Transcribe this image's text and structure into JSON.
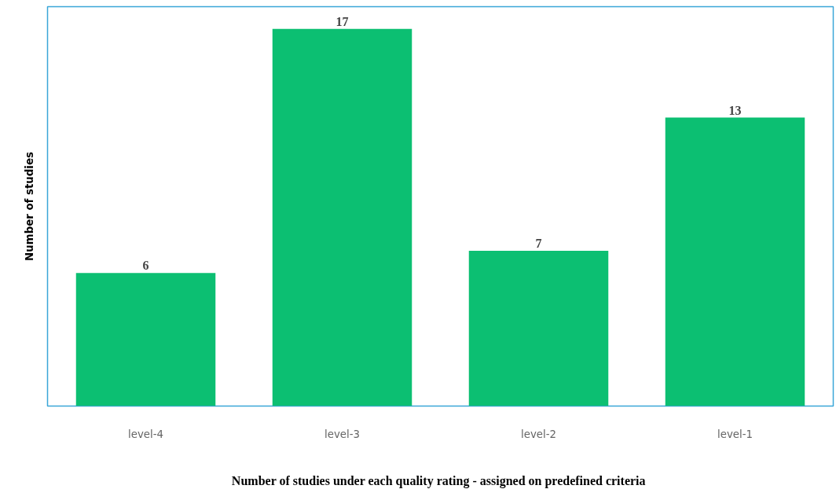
{
  "chart_data": {
    "type": "bar",
    "xlabel": "Number of  studies under each quality rating - assigned on predefined criteria",
    "ylabel": "Number of studies",
    "categories": [
      "level-4",
      "level-3",
      "level-2",
      "level-1"
    ],
    "values": [
      6,
      17,
      7,
      13
    ],
    "color": "#0cbf72",
    "ylim": [
      0,
      18
    ],
    "data_labels": true,
    "tick_labels": "x",
    "grid": false
  }
}
